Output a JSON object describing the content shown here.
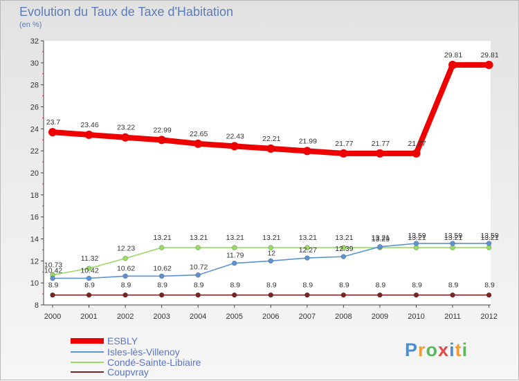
{
  "title": "Evolution du Taux de Taxe d'Habitation",
  "unit_label": "(en %)",
  "brand": {
    "letters": [
      "P",
      "r",
      "o",
      "x",
      "i",
      "t",
      "i"
    ],
    "colors": [
      "#4a8fd4",
      "#f39c34",
      "#5cb85c",
      "#e04848",
      "#4a8fd4",
      "#f39c34",
      "#5cb85c"
    ]
  },
  "chart_data": {
    "type": "line",
    "title": "Evolution du Taux de Taxe d'Habitation",
    "ylabel": "(en %)",
    "xlabel": "",
    "x": [
      "2000",
      "2001",
      "2002",
      "2003",
      "2004",
      "2005",
      "2006",
      "2007",
      "2008",
      "2009",
      "2010",
      "2011",
      "2012"
    ],
    "ylim": [
      8,
      32
    ],
    "ytick_step": 2,
    "grid": false,
    "legend_position": "bottom-left",
    "series": [
      {
        "name": "ESBLY",
        "color": "#ee0000",
        "values": [
          23.7,
          23.46,
          23.22,
          22.99,
          22.65,
          22.43,
          22.21,
          21.99,
          21.77,
          21.77,
          21.77,
          29.81,
          29.81
        ],
        "labels": [
          "23.7",
          "23.46",
          "23.22",
          "22.99",
          "22.65",
          "22.43",
          "22.21",
          "21.99",
          "21.77",
          "21.77",
          "21.77",
          "29.81",
          "29.81"
        ]
      },
      {
        "name": "Isles-lès-Villenoy",
        "color": "#5b93d3",
        "values": [
          10.42,
          10.42,
          10.62,
          10.62,
          10.72,
          11.79,
          12,
          12.27,
          12.39,
          13.29,
          13.59,
          13.59,
          13.59
        ],
        "labels": [
          "10.42",
          "10.42",
          "10.62",
          "10.62",
          "10.72",
          "11.79",
          "12",
          "12.27",
          "12.39",
          "13.29",
          "13.59",
          "13.59",
          "13.59"
        ]
      },
      {
        "name": "Condé-Sainte-Libiaire",
        "color": "#98dc66",
        "values": [
          10.73,
          11.32,
          12.23,
          13.21,
          13.21,
          13.21,
          13.21,
          13.21,
          13.21,
          13.21,
          13.21,
          13.21,
          13.21
        ],
        "labels": [
          "10.73",
          "11.32",
          "12.23",
          "13.21",
          "13.21",
          "13.21",
          "13.21",
          "13.21",
          "13.21",
          "13.21",
          "13.21",
          "13.21",
          "13.21"
        ]
      },
      {
        "name": "Coupvray",
        "color": "#7a2424",
        "values": [
          8.9,
          8.9,
          8.9,
          8.9,
          8.9,
          8.9,
          8.9,
          8.9,
          8.9,
          8.9,
          8.9,
          8.9,
          8.9
        ],
        "labels": [
          "8.9",
          "8.9",
          "8.9",
          "8.9",
          "8.9",
          "8.9",
          "8.9",
          "8.9",
          "8.9",
          "8.9",
          "8.9",
          "8.9",
          "8.9"
        ]
      }
    ]
  }
}
